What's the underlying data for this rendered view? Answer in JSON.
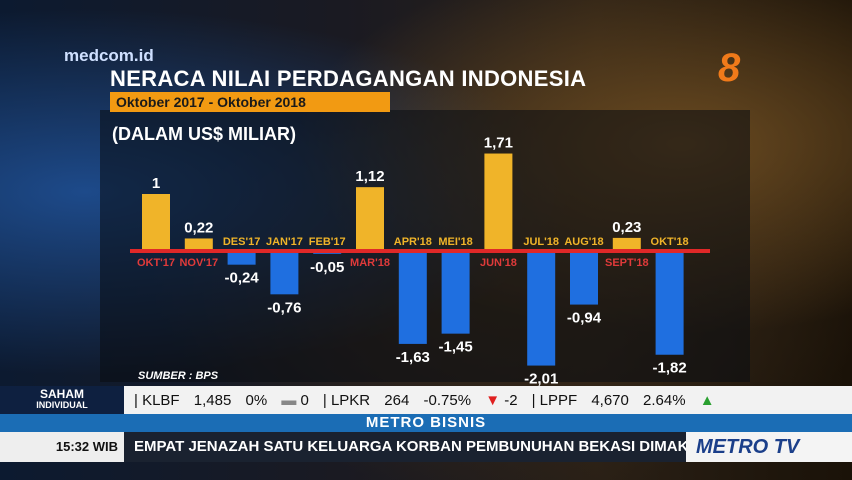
{
  "brand": {
    "logo": "medcom.id",
    "channel": "8"
  },
  "chart_data": {
    "type": "bar",
    "title": "NERACA NILAI PERDAGANGAN INDONESIA",
    "subtitle": "Oktober 2017 - Oktober 2018",
    "unit": "(DALAM US$ MILIAR)",
    "source": "SUMBER : BPS",
    "categories": [
      "OKT'17",
      "NOV'17",
      "DES'17",
      "JAN'17",
      "FEB'17",
      "MAR'18",
      "APR'18",
      "MEI'18",
      "JUN'18",
      "JUL'18",
      "AUG'18",
      "SEPT'18",
      "OKT'18"
    ],
    "values": [
      1,
      0.22,
      -0.24,
      -0.76,
      -0.05,
      1.12,
      -1.63,
      -1.45,
      1.71,
      -2.01,
      -0.94,
      0.23,
      -1.82
    ],
    "value_labels": [
      "1",
      "0,22",
      "-0,24",
      "-0,76",
      "-0,05",
      "1,12",
      "-1,63",
      "-1,45",
      "1,71",
      "-2,01",
      "-0,94",
      "0,23",
      "-1,82"
    ],
    "colors": {
      "positive": "#f0b429",
      "negative": "#1f6fe0",
      "zero_line": "#e02828",
      "positive_label": "#e03a3a",
      "negative_label": "#f0b429"
    }
  },
  "ticker": {
    "label": "SAHAM",
    "label_sub": "INDIVIDUAL",
    "items": [
      {
        "code": "KLBF",
        "price": "1,485",
        "pct": "0%",
        "dir": "flat",
        "change": "0"
      },
      {
        "code": "LPKR",
        "price": "264",
        "pct": "-0.75%",
        "dir": "down",
        "change": "-2"
      },
      {
        "code": "LPPF",
        "price": "4,670",
        "pct": "2.64%",
        "dir": "up",
        "change": ""
      }
    ]
  },
  "program": "METRO BISNIS",
  "news": {
    "time": "15:32 WIB",
    "headline": "EMPAT JENAZAH SATU KELUARGA KORBAN PEMBUNUHAN BEKASI DIMAKA",
    "channel_logo": "METRO TV"
  }
}
